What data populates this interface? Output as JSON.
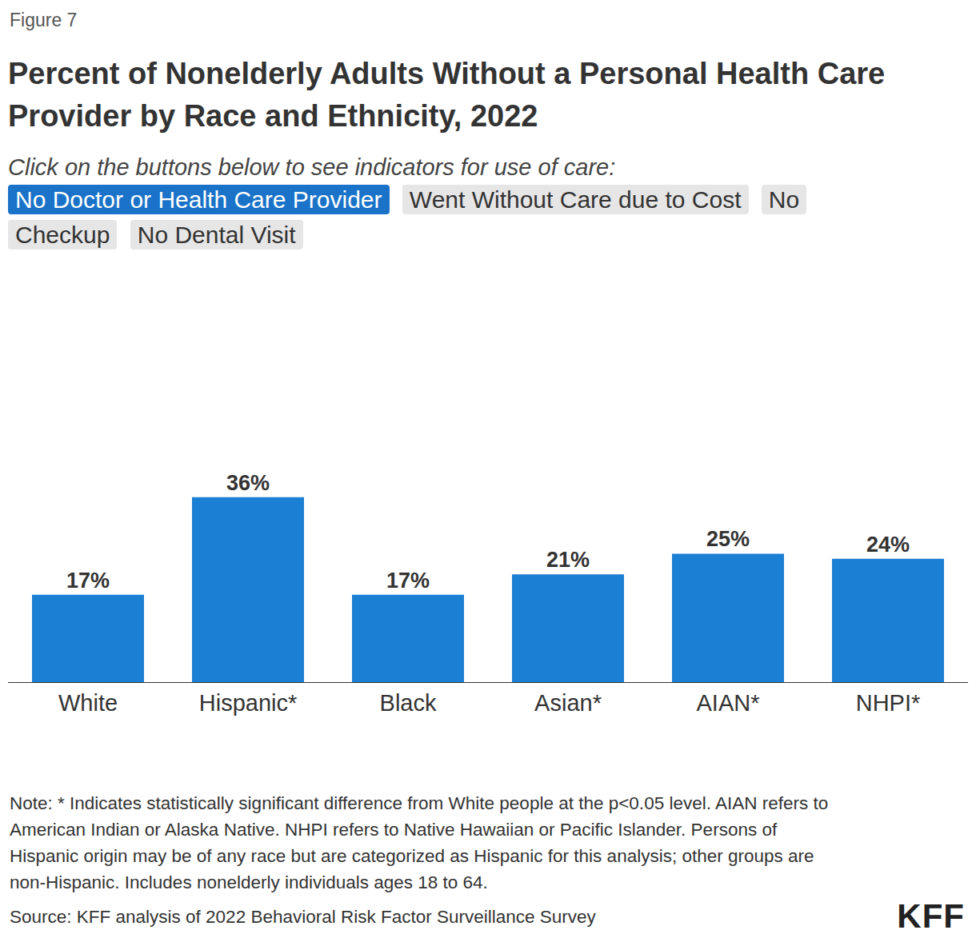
{
  "figure_label": "Figure 7",
  "buttons_prompt": "Click on the buttons below to see indicators for use of care:",
  "buttons": [
    {
      "label": "No Doctor or Health Care Provider",
      "active": true
    },
    {
      "label": "Went Without Care due to Cost",
      "active": false
    },
    {
      "label": "No Checkup",
      "active": false
    },
    {
      "label": "No Dental Visit",
      "active": false
    }
  ],
  "note": "Note: * Indicates statistically significant difference from White people at the p<0.05 level. AIAN refers to American Indian or Alaska Native. NHPI refers to Native Hawaiian or Pacific Islander. Persons of Hispanic origin may be of any race but are categorized as Hispanic for this analysis; other groups are non-Hispanic. Includes nonelderly individuals ages 18 to 64.",
  "source": "Source: KFF analysis of 2022 Behavioral Risk Factor Surveillance Survey",
  "logo": "KFF",
  "chart_data": {
    "type": "bar",
    "title": "Percent of Nonelderly Adults Without a Personal Health Care Provider by Race and Ethnicity, 2022",
    "categories": [
      "White",
      "Hispanic*",
      "Black",
      "Asian*",
      "AIAN*",
      "NHPI*"
    ],
    "values": [
      17,
      36,
      17,
      21,
      25,
      24
    ],
    "value_labels": [
      "17%",
      "36%",
      "17%",
      "21%",
      "25%",
      "24%"
    ],
    "color": "#1b7fd4",
    "ylim": [
      0,
      45
    ],
    "grid": false,
    "data_labels": true,
    "tick_labels": "x"
  }
}
